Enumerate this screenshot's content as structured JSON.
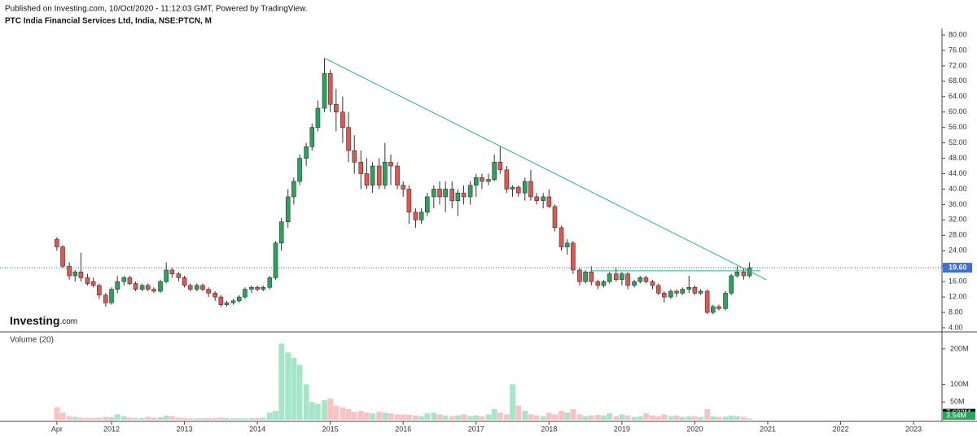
{
  "chart_data": {
    "type": "candlestick",
    "header": "Published on Investing.com, 10/Oct/2020 - 11:12:03 GMT, Powered by TradingView.",
    "title": "PTC India Financial Services Ltd, India, NSE:PTCN, M",
    "volume_title": "Volume (20)",
    "brand": "Investing",
    "brand_suffix": ".com",
    "up_color": "#26a65b",
    "down_color": "#e8534c",
    "volume_up_color": "#a6e6c8",
    "volume_down_color": "#fbc2c0",
    "trendline_color": "#2bb089",
    "x": [
      2011.25,
      2011.33,
      2011.42,
      2011.5,
      2011.58,
      2011.67,
      2011.75,
      2011.83,
      2011.92,
      2012,
      2012.08,
      2012.17,
      2012.25,
      2012.33,
      2012.42,
      2012.5,
      2012.58,
      2012.67,
      2012.75,
      2012.83,
      2012.92,
      2013,
      2013.08,
      2013.17,
      2013.25,
      2013.33,
      2013.42,
      2013.5,
      2013.58,
      2013.67,
      2013.75,
      2013.83,
      2013.92,
      2014,
      2014.08,
      2014.17,
      2014.25,
      2014.33,
      2014.42,
      2014.5,
      2014.58,
      2014.67,
      2014.75,
      2014.83,
      2014.92,
      2015,
      2015.08,
      2015.17,
      2015.25,
      2015.33,
      2015.42,
      2015.5,
      2015.58,
      2015.67,
      2015.75,
      2015.83,
      2015.92,
      2016,
      2016.08,
      2016.17,
      2016.25,
      2016.33,
      2016.42,
      2016.5,
      2016.58,
      2016.67,
      2016.75,
      2016.83,
      2016.92,
      2017,
      2017.08,
      2017.17,
      2017.25,
      2017.33,
      2017.42,
      2017.5,
      2017.58,
      2017.67,
      2017.75,
      2017.83,
      2017.92,
      2018,
      2018.08,
      2018.17,
      2018.25,
      2018.33,
      2018.42,
      2018.5,
      2018.58,
      2018.67,
      2018.75,
      2018.83,
      2018.92,
      2019,
      2019.08,
      2019.17,
      2019.25,
      2019.33,
      2019.42,
      2019.5,
      2019.58,
      2019.67,
      2019.75,
      2019.83,
      2019.92,
      2020,
      2020.08,
      2020.17,
      2020.25,
      2020.33,
      2020.42,
      2020.5,
      2020.58,
      2020.67,
      2020.75
    ],
    "open": [
      27,
      25,
      20,
      17.5,
      18.5,
      17,
      16,
      15,
      12.5,
      10.5,
      14,
      16,
      17,
      15.5,
      14,
      15,
      14,
      13.5,
      16,
      19,
      18,
      17,
      15,
      14,
      15,
      14,
      13,
      12,
      10,
      10.5,
      11,
      12,
      14,
      14.5,
      14,
      14.5,
      17,
      26,
      31.5,
      38,
      42,
      48,
      51,
      56,
      61,
      70,
      62,
      60,
      56,
      50,
      47,
      44,
      41,
      46,
      41,
      47,
      46,
      41,
      40,
      34,
      32,
      34,
      38,
      40,
      38,
      40,
      37,
      39,
      38,
      41,
      43,
      42,
      42.5,
      47,
      45,
      40,
      40.5,
      39,
      42,
      38,
      37,
      38,
      35.5,
      30,
      25,
      26,
      19,
      16,
      18.5,
      16,
      15,
      16,
      18,
      16.5,
      18,
      15,
      16,
      17,
      16,
      15,
      13,
      12,
      13.5,
      13,
      14,
      14.5,
      13,
      13.5,
      8,
      9.5,
      9,
      13,
      17.5,
      18.5,
      17.5
    ],
    "high": [
      27.5,
      25.5,
      21,
      19,
      23.5,
      18,
      17,
      15.5,
      13,
      14.5,
      17.5,
      17.5,
      17.5,
      16,
      15.5,
      15.5,
      14.5,
      16.5,
      21,
      19.5,
      18.5,
      17.5,
      15.5,
      15.5,
      15.5,
      14.5,
      13.5,
      12.5,
      11,
      11.5,
      12.5,
      14.5,
      15,
      15,
      15,
      17.5,
      26.5,
      32.5,
      40,
      43,
      49,
      52,
      57,
      63,
      74,
      71,
      66,
      64,
      60,
      54,
      50,
      48,
      47,
      48,
      52,
      49,
      47,
      42,
      41,
      35,
      35,
      39,
      41,
      42,
      42,
      42,
      40,
      41,
      42,
      44,
      44,
      44,
      49,
      51,
      46,
      41,
      41,
      43,
      45,
      39,
      39,
      40,
      36,
      30.5,
      27,
      26.5,
      19.5,
      19,
      20,
      16.5,
      16.5,
      18.5,
      19.5,
      18.5,
      18.5,
      16.5,
      17.5,
      17.5,
      16.5,
      15.5,
      13.5,
      14,
      14,
      14.5,
      17.5,
      15,
      14,
      14,
      10,
      10,
      13.5,
      18,
      20,
      19.5,
      21
    ],
    "low": [
      24,
      19.5,
      16.5,
      16,
      16,
      15,
      14.5,
      11.5,
      9.5,
      10,
      13,
      15,
      15,
      13.5,
      13.5,
      13.5,
      13,
      13,
      15.5,
      17,
      16,
      14.5,
      13.5,
      13.5,
      13.5,
      12,
      11,
      9.5,
      9.5,
      10,
      10.5,
      11.5,
      13,
      13.5,
      13.5,
      14,
      16.5,
      24,
      30,
      36,
      41,
      46,
      50,
      55,
      60,
      60,
      55,
      52,
      47,
      44,
      40,
      40,
      39,
      40,
      40,
      41,
      40,
      38,
      31,
      30,
      31,
      33,
      35,
      36,
      34,
      35,
      33,
      36,
      36,
      38,
      40,
      41,
      42,
      44,
      39,
      38,
      38,
      37,
      37,
      36,
      35,
      35,
      29,
      24,
      23,
      18,
      15,
      15.5,
      15,
      14,
      14.5,
      15.5,
      16,
      15,
      14,
      14.5,
      15.5,
      15.5,
      14,
      12.5,
      10.5,
      11.5,
      12,
      12.5,
      13,
      12.5,
      12.5,
      7.5,
      7.5,
      8.5,
      8.5,
      12.5,
      17,
      16.5,
      17
    ],
    "close": [
      25,
      20,
      17.5,
      18.5,
      17,
      15.5,
      15,
      12.5,
      10.5,
      14,
      16,
      17,
      15.5,
      14,
      15,
      14,
      13.5,
      16,
      19,
      18,
      17,
      15,
      14,
      15,
      14,
      13,
      12,
      10,
      10.5,
      11,
      12,
      14,
      14.5,
      14,
      14.5,
      17,
      26,
      31.5,
      38,
      42,
      48,
      51,
      56,
      61,
      70,
      62,
      60,
      56,
      50,
      47,
      44,
      41,
      46,
      41,
      47,
      46,
      41,
      40,
      34,
      32,
      34,
      38,
      40,
      38,
      40,
      37,
      39,
      38,
      41,
      43,
      42,
      42.5,
      47,
      45,
      40,
      40.5,
      39,
      42,
      38,
      37,
      38,
      35.5,
      30,
      25,
      26,
      19,
      16,
      18.5,
      16,
      15,
      16,
      18,
      16.5,
      18,
      15,
      16,
      17,
      16,
      15,
      13,
      12,
      13.5,
      13,
      14,
      14.5,
      13,
      13.5,
      8,
      9.5,
      9,
      13,
      17.5,
      18.5,
      17.5,
      19.6
    ],
    "volume": [
      35,
      20,
      10,
      8,
      6,
      5,
      5,
      6,
      8,
      7,
      15,
      10,
      6,
      5,
      5,
      8,
      6,
      7,
      12,
      10,
      6,
      5,
      4,
      4,
      4,
      5,
      5,
      6,
      5,
      4,
      4,
      4,
      5,
      5,
      6,
      20,
      25,
      215,
      190,
      175,
      155,
      100,
      50,
      45,
      55,
      60,
      40,
      35,
      30,
      22,
      25,
      20,
      18,
      22,
      20,
      18,
      15,
      15,
      14,
      12,
      10,
      18,
      20,
      15,
      12,
      10,
      12,
      15,
      10,
      12,
      10,
      15,
      30,
      20,
      15,
      100,
      40,
      25,
      15,
      12,
      10,
      20,
      15,
      25,
      20,
      30,
      15,
      10,
      12,
      14,
      12,
      18,
      10,
      15,
      12,
      8,
      10,
      18,
      12,
      10,
      15,
      10,
      12,
      8,
      10,
      10,
      8,
      30,
      10,
      8,
      9,
      12,
      10,
      8,
      3.54
    ],
    "xlim": [
      2010.47,
      2023.39
    ],
    "xticks": [
      {
        "value": 2011.25,
        "label": "Apr"
      },
      2012,
      2013,
      2014,
      2015,
      2016,
      2017,
      2018,
      2019,
      2020,
      2021,
      2022,
      2023
    ],
    "ylim": [
      4,
      80
    ],
    "yticks": [
      {
        "value": 4,
        "label": "4.00"
      },
      {
        "value": 8,
        "label": "8.00"
      },
      {
        "value": 12,
        "label": "12.00"
      },
      {
        "value": 16,
        "label": "16.00"
      },
      {
        "value": 20,
        "label": "20.00"
      },
      {
        "value": 24,
        "label": "24.00"
      },
      {
        "value": 28,
        "label": "28.00"
      },
      {
        "value": 32,
        "label": "32.00"
      },
      {
        "value": 36,
        "label": "36.00"
      },
      {
        "value": 40,
        "label": "40.00"
      },
      {
        "value": 44,
        "label": "44.00"
      },
      {
        "value": 48,
        "label": "48.00"
      },
      {
        "value": 52,
        "label": "52.00"
      },
      {
        "value": 56,
        "label": "56.00"
      },
      {
        "value": 60,
        "label": "60.00"
      },
      {
        "value": 64,
        "label": "64.00"
      },
      {
        "value": 68,
        "label": "68.00"
      },
      {
        "value": 72,
        "label": "72.00"
      },
      {
        "value": 76,
        "label": "76.00"
      },
      {
        "value": 80,
        "label": "80.00"
      }
    ],
    "volume_lim": [
      0,
      225
    ],
    "volume_ticks": [
      {
        "value": 50,
        "label": "50M"
      },
      {
        "value": 100,
        "label": "100M"
      },
      {
        "value": 200,
        "label": "200M"
      }
    ],
    "last_price": {
      "value": 19.6,
      "label": "19.60"
    },
    "volume_ma_label": {
      "value": 7.693,
      "label": "7.693M"
    },
    "last_volume_label": "3.54M",
    "trendline": {
      "x": [
        2014.92,
        2020.98
      ],
      "y": [
        74,
        16.5
      ]
    },
    "support_line": {
      "x": [
        2018.58,
        2020.9
      ],
      "y": [
        18.8,
        18.8
      ]
    }
  }
}
